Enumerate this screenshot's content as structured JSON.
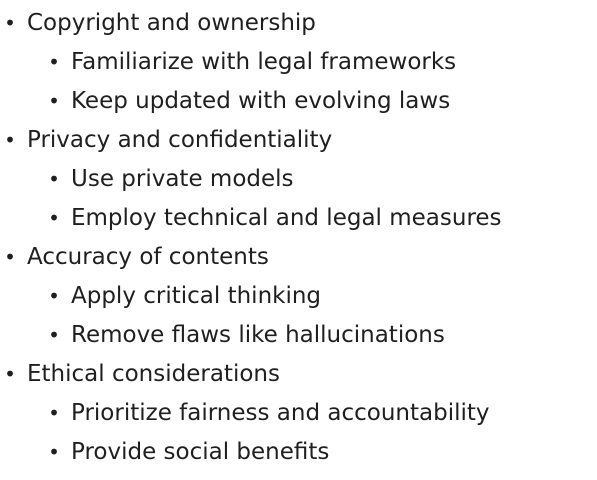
{
  "bullet_symbol": "•",
  "outline": [
    {
      "label": "Copyright and ownership",
      "children": [
        "Familiarize with legal frameworks",
        "Keep updated with evolving laws"
      ]
    },
    {
      "label": "Privacy and confidentiality",
      "children": [
        "Use private models",
        "Employ technical and legal measures"
      ]
    },
    {
      "label": "Accuracy of contents",
      "children": [
        "Apply critical thinking",
        "Remove flaws like hallucinations"
      ]
    },
    {
      "label": "Ethical considerations",
      "children": [
        "Prioritize fairness and accountability",
        "Provide social benefits"
      ]
    }
  ]
}
